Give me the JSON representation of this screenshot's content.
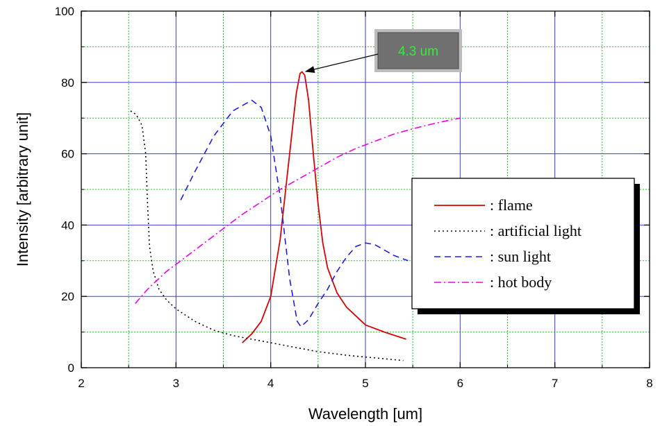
{
  "chart_data": {
    "type": "line",
    "title": "",
    "xlabel": "Wavelength [um]",
    "ylabel": "Intensity [arbitrary unit]",
    "xlim": [
      2,
      8
    ],
    "ylim": [
      0,
      100
    ],
    "x_ticks": [
      2,
      3,
      4,
      5,
      6,
      7,
      8
    ],
    "y_ticks": [
      0,
      20,
      40,
      60,
      80,
      100
    ],
    "grid": {
      "major": true,
      "minor": true,
      "major_color": "#3a3ad6",
      "minor_color": "#22c522"
    },
    "legend_position": "right",
    "series": [
      {
        "name": ": flame",
        "color": "#dd0000",
        "style": "solid",
        "points": [
          [
            3.7,
            7
          ],
          [
            3.8,
            9.5
          ],
          [
            3.9,
            13
          ],
          [
            4.0,
            20
          ],
          [
            4.1,
            36
          ],
          [
            4.2,
            60
          ],
          [
            4.27,
            77
          ],
          [
            4.31,
            82.5
          ],
          [
            4.33,
            83
          ],
          [
            4.36,
            82
          ],
          [
            4.4,
            75
          ],
          [
            4.45,
            60
          ],
          [
            4.5,
            46
          ],
          [
            4.55,
            35
          ],
          [
            4.6,
            28
          ],
          [
            4.7,
            21
          ],
          [
            4.8,
            17
          ],
          [
            5.0,
            12
          ],
          [
            5.2,
            10
          ],
          [
            5.43,
            8
          ]
        ]
      },
      {
        "name": ": artificial light",
        "color": "#000000",
        "style": "dotted",
        "points": [
          [
            2.52,
            72
          ],
          [
            2.58,
            71
          ],
          [
            2.64,
            68
          ],
          [
            2.68,
            60
          ],
          [
            2.7,
            46
          ],
          [
            2.72,
            34
          ],
          [
            2.76,
            27
          ],
          [
            2.82,
            22
          ],
          [
            2.9,
            19
          ],
          [
            3.0,
            16.5
          ],
          [
            3.2,
            13
          ],
          [
            3.4,
            10.5
          ],
          [
            3.6,
            9
          ],
          [
            3.8,
            8
          ],
          [
            4.0,
            7
          ],
          [
            4.2,
            6
          ],
          [
            4.5,
            4.5
          ],
          [
            4.8,
            3.5
          ],
          [
            5.0,
            3
          ],
          [
            5.2,
            2.5
          ],
          [
            5.4,
            2
          ]
        ]
      },
      {
        "name": ": sun light",
        "color": "#1a1aee",
        "style": "dashed",
        "points": [
          [
            3.05,
            47
          ],
          [
            3.2,
            55
          ],
          [
            3.4,
            65
          ],
          [
            3.6,
            72
          ],
          [
            3.8,
            75
          ],
          [
            3.9,
            73
          ],
          [
            4.0,
            65
          ],
          [
            4.1,
            48
          ],
          [
            4.2,
            25
          ],
          [
            4.28,
            13
          ],
          [
            4.32,
            11.5
          ],
          [
            4.4,
            13.5
          ],
          [
            4.5,
            18
          ],
          [
            4.6,
            22
          ],
          [
            4.7,
            27
          ],
          [
            4.8,
            31
          ],
          [
            4.9,
            34
          ],
          [
            5.0,
            35
          ],
          [
            5.1,
            34.5
          ],
          [
            5.2,
            33
          ],
          [
            5.3,
            31.5
          ],
          [
            5.45,
            30
          ]
        ]
      },
      {
        "name": ": hot body",
        "color": "#ee00ee",
        "style": "dashdot",
        "points": [
          [
            2.57,
            18
          ],
          [
            2.7,
            22
          ],
          [
            2.9,
            27
          ],
          [
            3.1,
            31
          ],
          [
            3.3,
            35
          ],
          [
            3.5,
            39
          ],
          [
            3.7,
            43
          ],
          [
            3.9,
            46.5
          ],
          [
            4.1,
            50
          ],
          [
            4.3,
            53
          ],
          [
            4.5,
            56
          ],
          [
            4.7,
            59
          ],
          [
            4.9,
            61.5
          ],
          [
            5.1,
            63.5
          ],
          [
            5.3,
            65.5
          ],
          [
            5.5,
            67
          ],
          [
            5.7,
            68.3
          ],
          [
            5.85,
            69.2
          ],
          [
            6.0,
            70
          ]
        ]
      }
    ],
    "annotation": {
      "text": "4.3 um",
      "text_color": "#33ee33",
      "box_color": "#707070",
      "target": [
        4.33,
        83
      ]
    }
  }
}
